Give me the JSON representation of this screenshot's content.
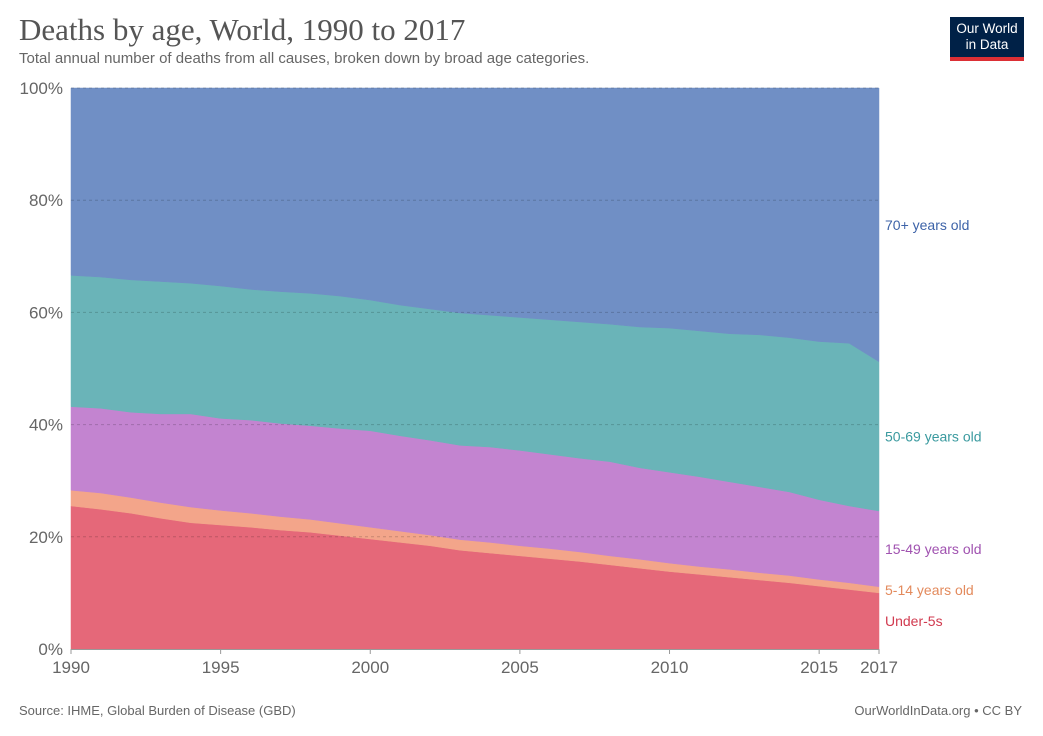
{
  "header": {
    "title": "Deaths by age, World, 1990 to 2017",
    "subtitle": "Total annual number of deaths from all causes, broken down by broad age categories."
  },
  "logo": {
    "line1": "Our World",
    "line2": "in Data"
  },
  "footer": {
    "source": "Source: IHME, Global Burden of Disease (GBD)",
    "credit": "OurWorldInData.org • CC BY"
  },
  "colors": {
    "under5": "#e56879",
    "age5_14": "#f3a58a",
    "age15_49": "#c384d0",
    "age50_69": "#6ab4b8",
    "age70plus": "#708fc5",
    "label_under5": "#d13a4f",
    "label_5_14": "#e38a5c",
    "label_15_49": "#a052b0",
    "label_50_69": "#3a9a9f",
    "label_70plus": "#3d63a8",
    "logo_bg": "#002147",
    "logo_bar": "#dc2f35"
  },
  "chart_data": {
    "type": "area",
    "stacked": true,
    "percent": true,
    "x": [
      1990,
      1991,
      1992,
      1993,
      1994,
      1995,
      1996,
      1997,
      1998,
      1999,
      2000,
      2001,
      2002,
      2003,
      2004,
      2005,
      2006,
      2007,
      2008,
      2009,
      2010,
      2011,
      2012,
      2013,
      2014,
      2015,
      2016,
      2017
    ],
    "series": [
      {
        "name": "Under-5s",
        "color_key": "under5",
        "label_color_key": "label_under5",
        "values": [
          25.5,
          24.9,
          24.2,
          23.3,
          22.5,
          22.1,
          21.7,
          21.2,
          20.8,
          20.2,
          19.6,
          19.0,
          18.4,
          17.6,
          17.1,
          16.6,
          16.1,
          15.6,
          15.0,
          14.4,
          13.8,
          13.3,
          12.8,
          12.3,
          11.8,
          11.2,
          10.6,
          10.0
        ]
      },
      {
        "name": "5-14 years old",
        "color_key": "age5_14",
        "label_color_key": "label_5_14",
        "values": [
          2.8,
          2.9,
          2.8,
          2.8,
          2.8,
          2.6,
          2.5,
          2.4,
          2.3,
          2.2,
          2.1,
          2.0,
          1.9,
          1.9,
          1.9,
          1.8,
          1.8,
          1.7,
          1.6,
          1.6,
          1.5,
          1.4,
          1.4,
          1.3,
          1.3,
          1.2,
          1.2,
          1.1
        ]
      },
      {
        "name": "15-49 years old",
        "color_key": "age15_49",
        "label_color_key": "label_15_49",
        "values": [
          14.9,
          15.1,
          15.2,
          15.8,
          16.6,
          16.4,
          16.6,
          16.6,
          16.7,
          16.9,
          17.2,
          17.0,
          16.9,
          16.8,
          17.0,
          17.0,
          16.8,
          16.7,
          16.8,
          16.3,
          16.2,
          16.0,
          15.6,
          15.3,
          14.9,
          14.2,
          13.7,
          13.5
        ]
      },
      {
        "name": "50-69 years old",
        "color_key": "age50_69",
        "label_color_key": "label_50_69",
        "values": [
          23.4,
          23.4,
          23.6,
          23.6,
          23.3,
          23.6,
          23.3,
          23.5,
          23.6,
          23.6,
          23.3,
          23.3,
          23.4,
          23.6,
          23.5,
          23.7,
          24.0,
          24.3,
          24.5,
          25.1,
          25.7,
          26.0,
          26.4,
          27.1,
          27.5,
          28.2,
          29.0,
          26.6
        ]
      },
      {
        "name": "70+ years old",
        "color_key": "age70plus",
        "label_color_key": "label_70plus",
        "values": [
          33.4,
          33.7,
          34.2,
          34.5,
          34.8,
          35.3,
          35.9,
          36.3,
          36.6,
          37.1,
          37.8,
          38.7,
          39.4,
          40.1,
          40.5,
          40.9,
          41.3,
          41.7,
          42.1,
          42.6,
          42.8,
          43.3,
          43.8,
          44.0,
          44.5,
          45.2,
          45.5,
          48.8
        ]
      }
    ],
    "x_ticks": [
      1990,
      1995,
      2000,
      2005,
      2010,
      2015,
      2017
    ],
    "y_ticks": [
      0,
      20,
      40,
      60,
      80,
      100
    ],
    "y_tick_labels": [
      "0%",
      "20%",
      "40%",
      "60%",
      "80%",
      "100%"
    ],
    "ylim": [
      0,
      100
    ],
    "xlim": [
      1990,
      2017
    ],
    "grid": "horizontal dashed",
    "legend": "inline labels at right end"
  }
}
